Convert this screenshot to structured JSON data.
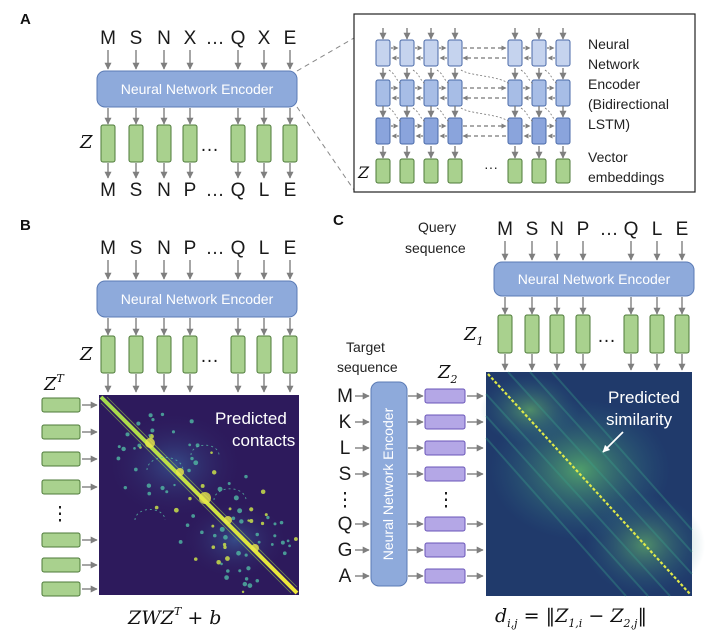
{
  "panels": {
    "a": "A",
    "b": "B",
    "c": "C"
  },
  "encoder_label": "Neural Network Encoder",
  "ellipsis": "…",
  "panel_a": {
    "input_seq": [
      "M",
      "S",
      "N",
      "X",
      "…",
      "Q",
      "X",
      "E"
    ],
    "output_seq": [
      "M",
      "S",
      "N",
      "P",
      "…",
      "Q",
      "L",
      "E"
    ],
    "z_label": "Z",
    "inset_encoder_lines": [
      "Neural",
      "Network",
      "Encoder",
      "(Bidirectional",
      "LSTM)"
    ],
    "inset_embed_lines": [
      "Vector",
      "embeddings"
    ],
    "inset_z_label": "Z",
    "inset_dots": "···"
  },
  "panel_b": {
    "seq": [
      "M",
      "S",
      "N",
      "P",
      "…",
      "Q",
      "L",
      "E"
    ],
    "z_label": "Z",
    "zt_label": "ZT",
    "contacts_lines": [
      "Predicted",
      "contacts"
    ],
    "formula": "ZWZT + b"
  },
  "panel_c": {
    "query_lines": [
      "Query",
      "sequence"
    ],
    "query_seq": [
      "M",
      "S",
      "N",
      "P",
      "…",
      "Q",
      "L",
      "E"
    ],
    "z1_label": "Z1",
    "target_lines": [
      "Target",
      "sequence"
    ],
    "target_seq": [
      "M",
      "K",
      "L",
      "S",
      "⋮",
      "Q",
      "G",
      "A"
    ],
    "z2_label": "Z2",
    "similarity_lines": [
      "Predicted",
      "similarity"
    ],
    "formula": "di,j = ‖Z1,i − Z2,j‖"
  },
  "colors": {
    "encoder_fill": "#8eaadb",
    "embedding_fill": "#a9d18e",
    "z2_fill": "#b4a7e6",
    "masked_letter": "#8c8c8c",
    "predicted_letter": "#e07a27",
    "arrow": "#7f7f7f",
    "heatmap_bg": "#2d1a5c"
  }
}
